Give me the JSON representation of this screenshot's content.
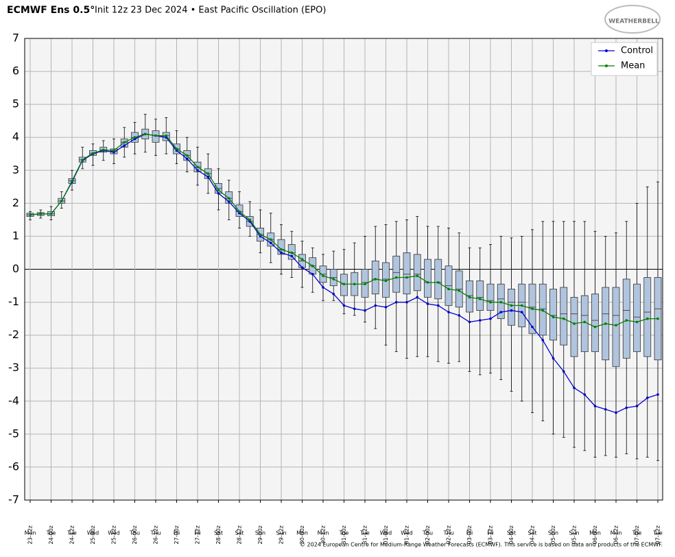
{
  "chart_data": {
    "type": "box",
    "title": "ECMWF Ens 0.5°",
    "subtitle": "Init 12z 23 Dec 2024 • East Pacific Oscillation (EPO)",
    "logo": "WEATHERBELL",
    "footer": "© 2024 European Centre for Medium-Range Weather Forecasts (ECMWF). This service is based on data and products of the ECMWF.",
    "categories": [
      "23-12z",
      null,
      "24-00z",
      null,
      "24-12z",
      null,
      "25-00z",
      null,
      "25-12z",
      null,
      "26-00z",
      null,
      "26-12z",
      null,
      "27-00z",
      null,
      "27-12z",
      null,
      "28-00z",
      null,
      "28-12z",
      null,
      "29-00z",
      null,
      "29-12z",
      null,
      "30-00z",
      null,
      "30-12z",
      null,
      "31-00z",
      null,
      "31-12z",
      null,
      "01-00z",
      null,
      "01-12z",
      null,
      "02-00z",
      null,
      "02-12z",
      null,
      "03-00z",
      null,
      "03-12z",
      null,
      "04-00z",
      null,
      "04-12z",
      null,
      "05-00z",
      null,
      "05-12z",
      null,
      "06-00z",
      null,
      "06-12z",
      null,
      "07-00z",
      null,
      "07-12z"
    ],
    "days": [
      "Mon",
      null,
      "Tue",
      null,
      "Tue",
      null,
      "Wed",
      null,
      "Wed",
      null,
      "Thu",
      null,
      "Thu",
      null,
      "Fri",
      null,
      "Fri",
      null,
      "Sat",
      null,
      "Sat",
      null,
      "Sun",
      null,
      "Sun",
      null,
      "Mon",
      null,
      "Mon",
      null,
      "Tue",
      null,
      "Tue",
      null,
      "Wed",
      null,
      "Wed",
      null,
      "Thu",
      null,
      "Thu",
      null,
      "Fri",
      null,
      "Fri",
      null,
      "Sat",
      null,
      "Sat",
      null,
      "Sun",
      null,
      "Sun",
      null,
      "Mon",
      null,
      "Mon",
      null,
      "Tue",
      null,
      "Tue"
    ],
    "series": [
      {
        "name": "Control",
        "color": "#0000cc",
        "values": [
          1.65,
          1.68,
          1.68,
          2.07,
          2.65,
          3.3,
          3.5,
          3.6,
          3.55,
          3.75,
          3.95,
          4.1,
          4.05,
          4.0,
          3.6,
          3.35,
          3.0,
          2.8,
          2.3,
          2.05,
          1.7,
          1.45,
          1.0,
          0.8,
          0.5,
          0.4,
          0.05,
          -0.15,
          -0.55,
          -0.75,
          -1.1,
          -1.2,
          -1.25,
          -1.1,
          -1.15,
          -1.0,
          -1.0,
          -0.85,
          -1.05,
          -1.1,
          -1.3,
          -1.4,
          -1.6,
          -1.55,
          -1.5,
          -1.3,
          -1.25,
          -1.3,
          -1.75,
          -2.15,
          -2.7,
          -3.1,
          -3.6,
          -3.8,
          -4.15,
          -4.25,
          -4.35,
          -4.2,
          -4.15,
          -3.9,
          -3.8
        ]
      },
      {
        "name": "Mean",
        "color": "#008000",
        "values": [
          1.65,
          1.68,
          1.68,
          2.07,
          2.68,
          3.32,
          3.52,
          3.62,
          3.6,
          3.85,
          4.0,
          4.1,
          4.05,
          4.05,
          3.65,
          3.45,
          3.1,
          2.9,
          2.4,
          2.15,
          1.75,
          1.5,
          1.05,
          0.9,
          0.6,
          0.5,
          0.3,
          0.1,
          -0.2,
          -0.3,
          -0.45,
          -0.45,
          -0.45,
          -0.3,
          -0.35,
          -0.25,
          -0.25,
          -0.2,
          -0.4,
          -0.4,
          -0.6,
          -0.65,
          -0.85,
          -0.9,
          -1.0,
          -1.0,
          -1.1,
          -1.1,
          -1.2,
          -1.25,
          -1.45,
          -1.5,
          -1.65,
          -1.6,
          -1.75,
          -1.65,
          -1.7,
          -1.55,
          -1.6,
          -1.5,
          -1.5
        ]
      }
    ],
    "boxes": {
      "color": "#b0c4de",
      "min": [
        1.5,
        1.55,
        1.5,
        1.85,
        2.4,
        3.05,
        3.15,
        3.3,
        3.2,
        3.4,
        3.5,
        3.55,
        3.45,
        3.5,
        3.2,
        2.95,
        2.55,
        2.3,
        1.8,
        1.5,
        1.25,
        1.0,
        0.5,
        0.2,
        -0.15,
        -0.25,
        -0.55,
        -0.7,
        -0.95,
        -0.95,
        -1.35,
        -1.4,
        -1.6,
        -1.8,
        -2.3,
        -2.5,
        -2.7,
        -2.65,
        -2.65,
        -2.8,
        -2.85,
        -2.8,
        -3.1,
        -3.2,
        -3.15,
        -3.35,
        -3.7,
        -4.0,
        -4.35,
        -4.6,
        -5.0,
        -5.1,
        -5.4,
        -5.5,
        -5.7,
        -5.65,
        -5.7,
        -5.6,
        -5.75,
        -5.7,
        -5.8
      ],
      "q1": [
        1.6,
        1.63,
        1.62,
        2.0,
        2.6,
        3.25,
        3.45,
        3.55,
        3.5,
        3.7,
        3.85,
        3.95,
        3.85,
        3.9,
        3.5,
        3.3,
        2.95,
        2.75,
        2.3,
        2.0,
        1.6,
        1.3,
        0.85,
        0.7,
        0.45,
        0.3,
        0.05,
        -0.15,
        -0.4,
        -0.5,
        -0.8,
        -0.8,
        -0.85,
        -0.75,
        -0.85,
        -0.7,
        -0.75,
        -0.65,
        -0.85,
        -0.9,
        -1.1,
        -1.15,
        -1.3,
        -1.25,
        -1.25,
        -1.5,
        -1.7,
        -1.75,
        -1.95,
        -2.0,
        -2.15,
        -2.3,
        -2.65,
        -2.5,
        -2.5,
        -2.75,
        -2.95,
        -2.7,
        -2.5,
        -2.65,
        -2.75
      ],
      "median": [
        1.65,
        1.68,
        1.68,
        2.07,
        2.68,
        3.32,
        3.52,
        3.62,
        3.58,
        3.85,
        4.0,
        4.1,
        4.05,
        4.05,
        3.65,
        3.45,
        3.1,
        2.9,
        2.45,
        2.15,
        1.75,
        1.45,
        1.05,
        0.9,
        0.6,
        0.5,
        0.25,
        0.1,
        -0.15,
        -0.25,
        -0.45,
        -0.45,
        -0.4,
        -0.3,
        -0.3,
        -0.1,
        -0.15,
        -0.15,
        -0.4,
        -0.4,
        -0.5,
        -0.6,
        -0.8,
        -0.85,
        -0.95,
        -0.9,
        -1.0,
        -1.0,
        -1.15,
        -1.2,
        -1.4,
        -1.35,
        -1.35,
        -1.4,
        -1.55,
        -1.35,
        -1.4,
        -1.25,
        -1.45,
        -1.3,
        -1.2
      ],
      "q3": [
        1.7,
        1.72,
        1.75,
        2.15,
        2.75,
        3.4,
        3.6,
        3.7,
        3.65,
        3.95,
        4.15,
        4.25,
        4.2,
        4.15,
        3.8,
        3.6,
        3.25,
        3.05,
        2.6,
        2.35,
        1.95,
        1.6,
        1.25,
        1.1,
        0.9,
        0.75,
        0.45,
        0.35,
        0.1,
        0.0,
        -0.15,
        -0.1,
        0.0,
        0.25,
        0.2,
        0.4,
        0.5,
        0.45,
        0.3,
        0.3,
        0.1,
        -0.05,
        -0.35,
        -0.35,
        -0.45,
        -0.45,
        -0.6,
        -0.45,
        -0.45,
        -0.45,
        -0.6,
        -0.55,
        -0.85,
        -0.8,
        -0.75,
        -0.55,
        -0.55,
        -0.3,
        -0.45,
        -0.25,
        -0.25
      ],
      "max": [
        1.75,
        1.8,
        1.9,
        2.35,
        3.0,
        3.7,
        3.8,
        3.9,
        3.95,
        4.3,
        4.45,
        4.7,
        4.55,
        4.6,
        4.2,
        4.0,
        3.7,
        3.5,
        3.05,
        2.7,
        2.35,
        2.05,
        1.8,
        1.7,
        1.35,
        1.15,
        0.85,
        0.65,
        0.45,
        0.55,
        0.6,
        0.8,
        1.0,
        1.3,
        1.35,
        1.45,
        1.5,
        1.6,
        1.3,
        1.3,
        1.25,
        1.1,
        0.65,
        0.65,
        0.75,
        1.0,
        0.95,
        1.0,
        1.2,
        1.45,
        1.45,
        1.45,
        1.45,
        1.45,
        1.15,
        1.0,
        1.1,
        1.45,
        2.0,
        2.5,
        2.65
      ]
    },
    "ylim": [
      -7,
      7
    ],
    "yticks": [
      -7,
      -6,
      -5,
      -4,
      -3,
      -2,
      -1,
      0,
      1,
      2,
      3,
      4,
      5,
      6,
      7
    ],
    "grid": true,
    "legend": "upper right"
  }
}
